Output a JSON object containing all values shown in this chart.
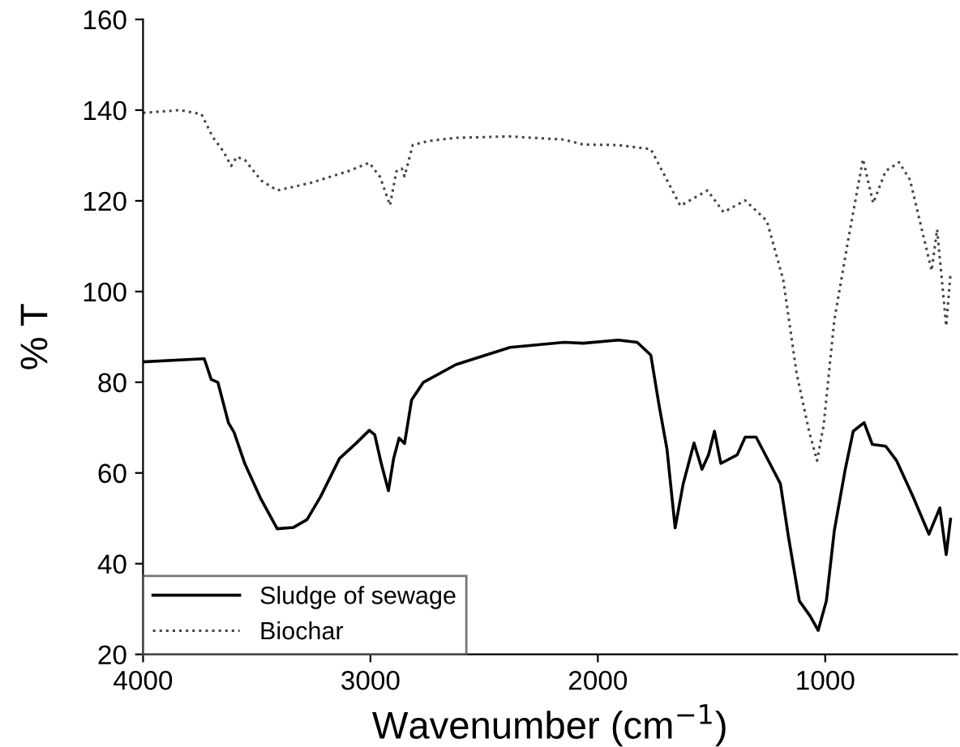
{
  "chart_data": {
    "type": "line",
    "xlabel": "Wavenumber (cm$^{−1}$)",
    "ylabel": "% T",
    "xlim": [
      4000,
      420
    ],
    "xticks": [
      4000,
      3000,
      2000,
      1000
    ],
    "ylim": [
      20,
      160
    ],
    "yticks": [
      20,
      40,
      60,
      80,
      100,
      120,
      140,
      160
    ],
    "grid": false,
    "legend": "bottom left",
    "marker": "none",
    "series": [
      {
        "name": "Sludge of sewage",
        "color": "#000000",
        "line_style": "solid",
        "x": [
          4000,
          3731,
          3700,
          3671,
          3624,
          3600,
          3552,
          3481,
          3410,
          3338,
          3279,
          3219,
          3136,
          3064,
          3005,
          2981,
          2952,
          2921,
          2898,
          2874,
          2850,
          2819,
          2767,
          2624,
          2386,
          2148,
          2064,
          1910,
          1827,
          1767,
          1731,
          1696,
          1660,
          1625,
          1577,
          1542,
          1513,
          1487,
          1459,
          1387,
          1352,
          1304,
          1257,
          1197,
          1162,
          1114,
          1067,
          1031,
          995,
          960,
          912,
          877,
          829,
          793,
          734,
          686,
          615,
          544,
          496,
          468,
          449
        ],
        "values": [
          84.5,
          85.2,
          80.6,
          80,
          71,
          69,
          62,
          54.2,
          47.7,
          48,
          49.7,
          54.8,
          63.2,
          66.5,
          69.4,
          68.4,
          62,
          56.1,
          63.2,
          67.7,
          66.5,
          76.1,
          80,
          83.9,
          87.7,
          88.8,
          88.6,
          89.3,
          88.8,
          86,
          75,
          65.3,
          47.9,
          57.5,
          66.6,
          60.8,
          64,
          69.2,
          62.1,
          64,
          67.9,
          67.9,
          63.4,
          57.6,
          46,
          31.8,
          28.5,
          25.3,
          31.8,
          47.3,
          60.8,
          69.2,
          71.1,
          66.3,
          65.9,
          62.7,
          54.9,
          46.5,
          52.3,
          42,
          49.8
        ]
      },
      {
        "name": "Biochar",
        "color": "#444444",
        "line_style": "dotted",
        "x": [
          4000,
          3838,
          3743,
          3695,
          3648,
          3612,
          3588,
          3552,
          3481,
          3410,
          3267,
          3100,
          3005,
          2957,
          2914,
          2886,
          2862,
          2850,
          2814,
          2743,
          2624,
          2386,
          2148,
          2064,
          1910,
          1767,
          1637,
          1518,
          1447,
          1352,
          1257,
          1185,
          1126,
          1071,
          1036,
          1007,
          960,
          900,
          834,
          789,
          734,
          675,
          627,
          532,
          508,
          468,
          449
        ],
        "values": [
          139.4,
          140,
          139.1,
          134.2,
          131,
          127.7,
          129.7,
          129,
          124.5,
          122.3,
          123.9,
          126.5,
          128.4,
          125.2,
          119,
          126.5,
          127.1,
          125.4,
          132.3,
          133.2,
          133.9,
          134.2,
          133.5,
          132.4,
          132.3,
          131.4,
          118.9,
          122.3,
          117.5,
          120.1,
          115.6,
          102.7,
          82,
          69.2,
          62.7,
          70.5,
          93.7,
          111.1,
          129.2,
          119.5,
          126.6,
          128.5,
          124.6,
          104.6,
          113.7,
          92.4,
          104
        ]
      }
    ]
  }
}
